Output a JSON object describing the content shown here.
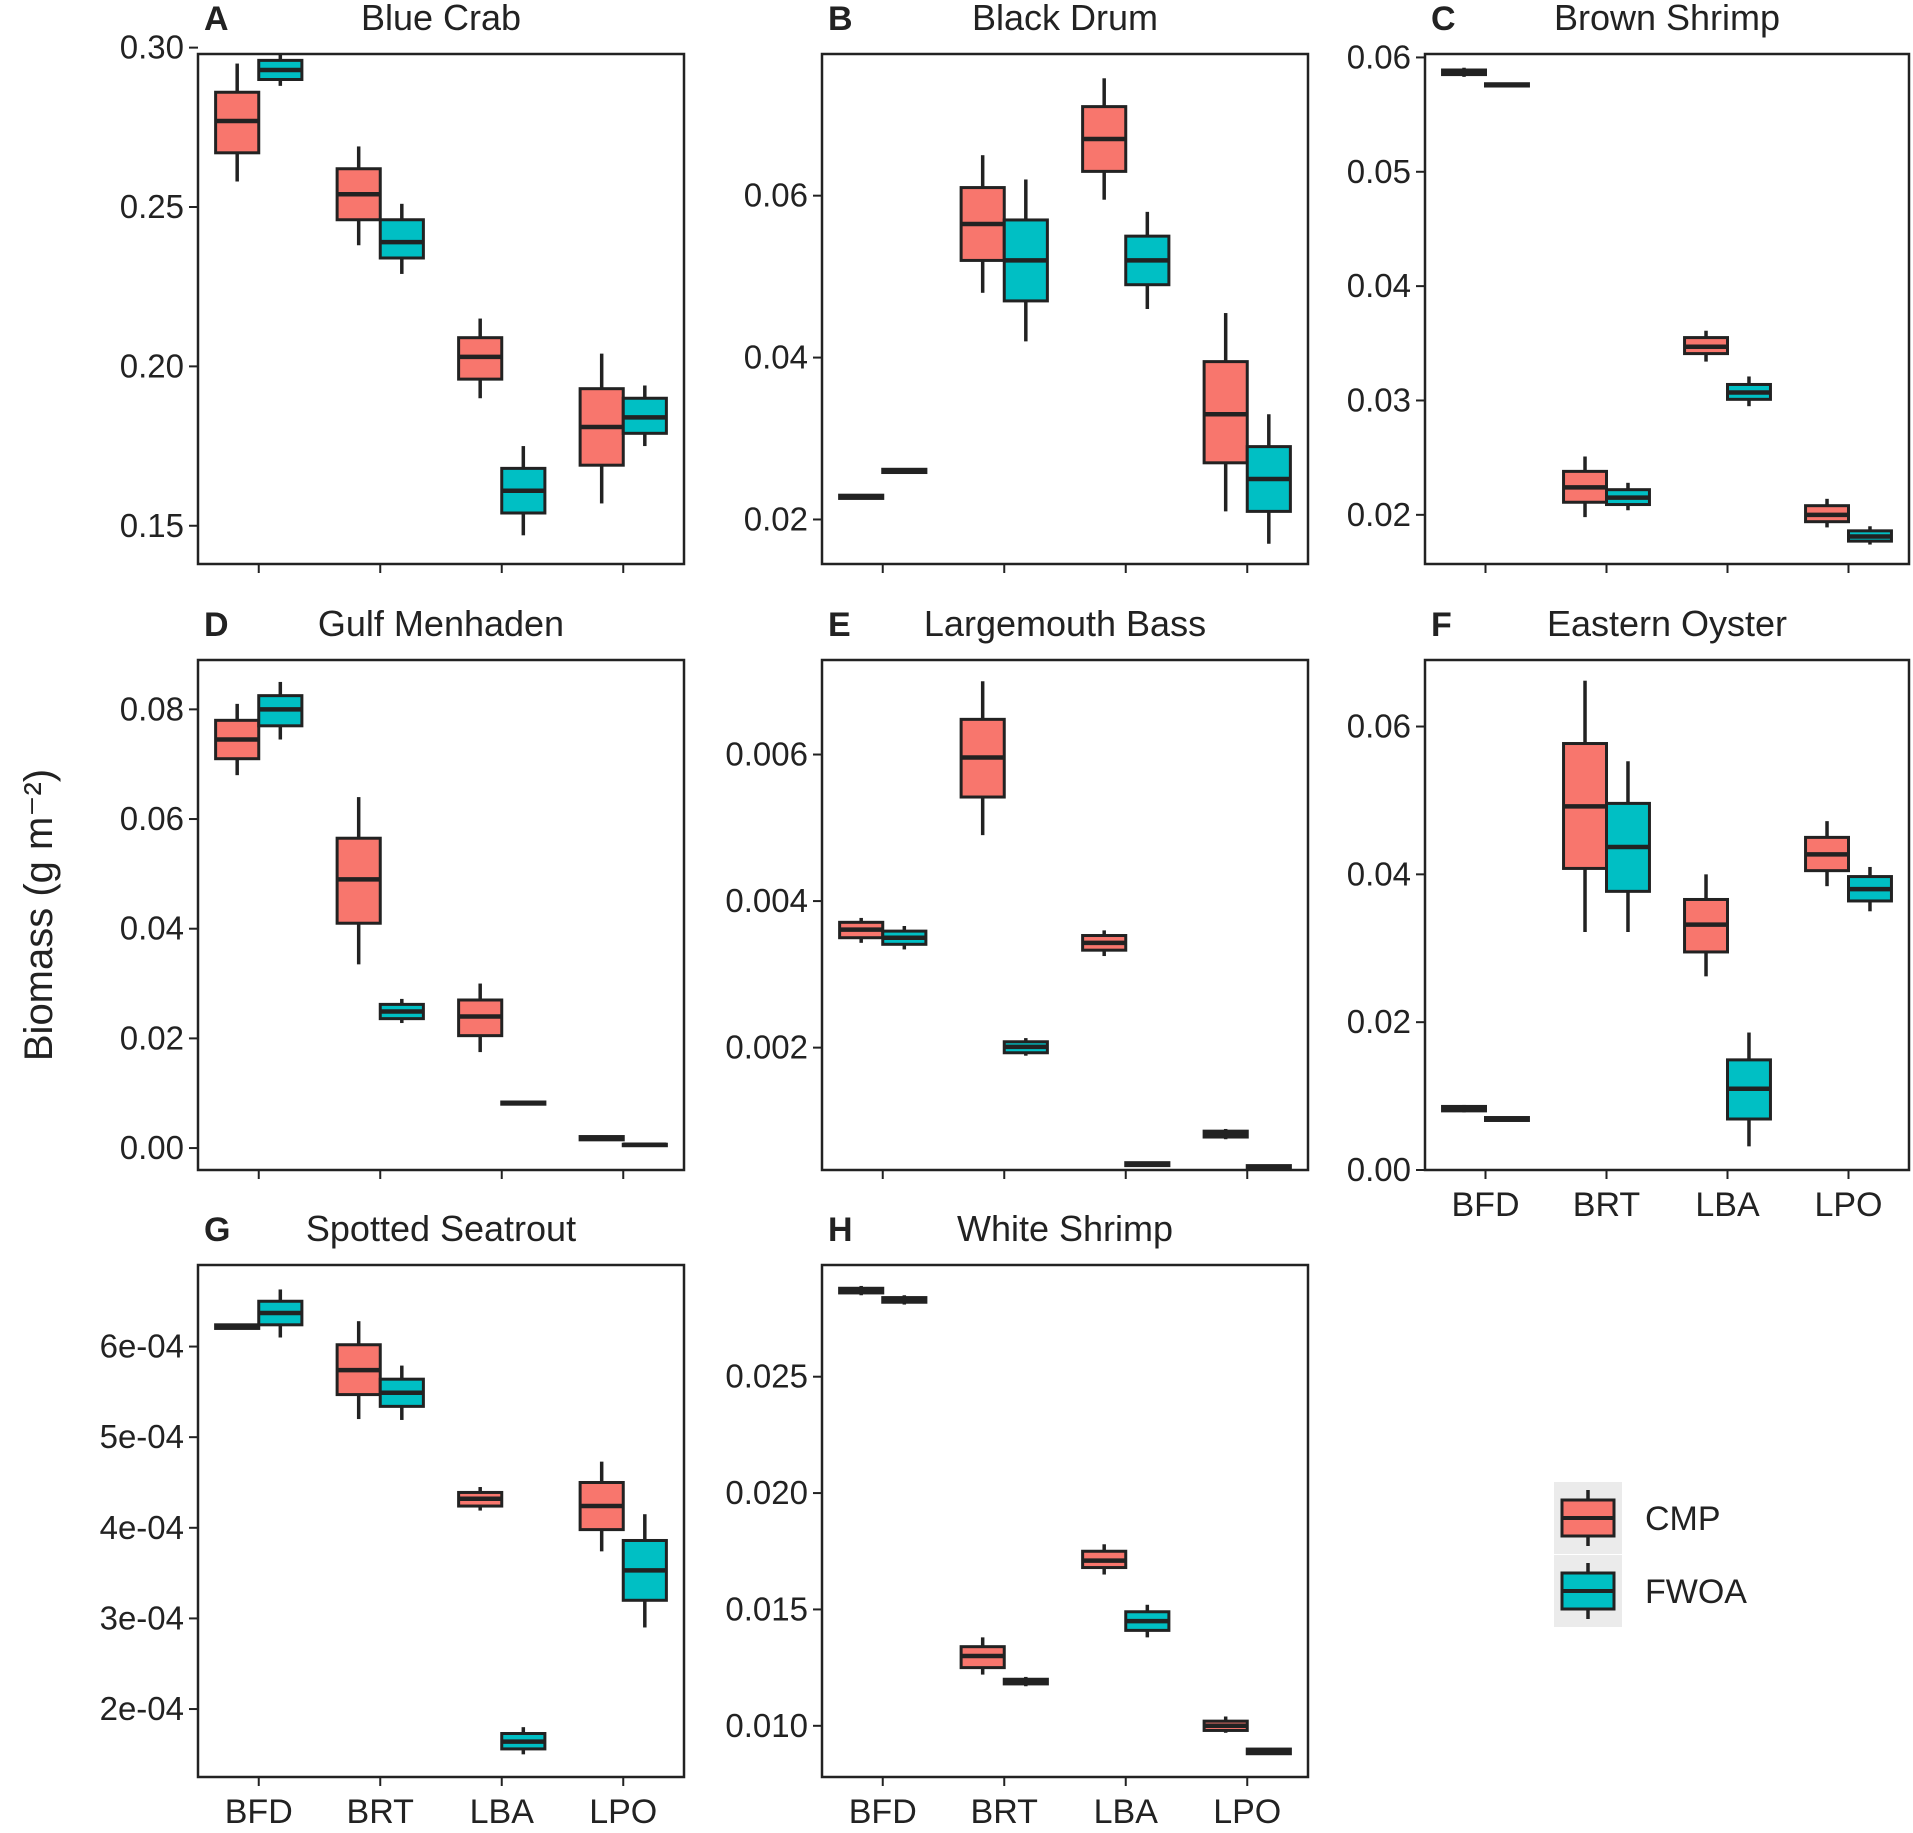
{
  "colors": {
    "CMP": "#F8766D",
    "FWOA": "#00BFC4",
    "outline": "#222222",
    "frame": "#222222"
  },
  "y_axis_title": "Biomass (g m⁻²)",
  "legend": [
    {
      "name": "CMP",
      "color": "#F8766D"
    },
    {
      "name": "FWOA",
      "color": "#00BFC4"
    }
  ],
  "chart_data": [
    {
      "panel": "A",
      "title": "Blue Crab",
      "type": "boxplot",
      "categories": [
        "BFD",
        "BRT",
        "LBA",
        "LPO"
      ],
      "ylim": [
        0.138,
        0.298
      ],
      "yticks": [
        0.15,
        0.2,
        0.25,
        0.3
      ],
      "yticklabels": [
        "0.15",
        "0.20",
        "0.25",
        "0.30"
      ],
      "series": [
        {
          "name": "CMP",
          "boxes": [
            {
              "min": 0.258,
              "q1": 0.267,
              "median": 0.277,
              "q3": 0.286,
              "max": 0.295
            },
            {
              "min": 0.238,
              "q1": 0.246,
              "median": 0.254,
              "q3": 0.262,
              "max": 0.269
            },
            {
              "min": 0.19,
              "q1": 0.196,
              "median": 0.203,
              "q3": 0.209,
              "max": 0.215
            },
            {
              "min": 0.157,
              "q1": 0.169,
              "median": 0.181,
              "q3": 0.193,
              "max": 0.204
            }
          ]
        },
        {
          "name": "FWOA",
          "boxes": [
            {
              "min": 0.288,
              "q1": 0.29,
              "median": 0.293,
              "q3": 0.296,
              "max": 0.298
            },
            {
              "min": 0.229,
              "q1": 0.234,
              "median": 0.239,
              "q3": 0.246,
              "max": 0.251
            },
            {
              "min": 0.147,
              "q1": 0.154,
              "median": 0.161,
              "q3": 0.168,
              "max": 0.175
            },
            {
              "min": 0.175,
              "q1": 0.179,
              "median": 0.184,
              "q3": 0.19,
              "max": 0.194
            }
          ]
        }
      ],
      "show_x_labels": false
    },
    {
      "panel": "B",
      "title": "Black Drum",
      "type": "boxplot",
      "categories": [
        "BFD",
        "BRT",
        "LBA",
        "LPO"
      ],
      "ylim": [
        0.0145,
        0.0775
      ],
      "yticks": [
        0.02,
        0.04,
        0.06
      ],
      "yticklabels": [
        "0.02",
        "0.04",
        "0.06"
      ],
      "series": [
        {
          "name": "CMP",
          "boxes": [
            {
              "min": 0.0225,
              "q1": 0.0226,
              "median": 0.0228,
              "q3": 0.023,
              "max": 0.0231
            },
            {
              "min": 0.048,
              "q1": 0.052,
              "median": 0.0565,
              "q3": 0.061,
              "max": 0.065
            },
            {
              "min": 0.0595,
              "q1": 0.063,
              "median": 0.067,
              "q3": 0.071,
              "max": 0.0745
            },
            {
              "min": 0.021,
              "q1": 0.027,
              "median": 0.033,
              "q3": 0.0395,
              "max": 0.0455
            }
          ]
        },
        {
          "name": "FWOA",
          "boxes": [
            {
              "min": 0.0257,
              "q1": 0.0258,
              "median": 0.026,
              "q3": 0.0262,
              "max": 0.0263
            },
            {
              "min": 0.042,
              "q1": 0.047,
              "median": 0.052,
              "q3": 0.057,
              "max": 0.062
            },
            {
              "min": 0.046,
              "q1": 0.049,
              "median": 0.052,
              "q3": 0.055,
              "max": 0.058
            },
            {
              "min": 0.017,
              "q1": 0.021,
              "median": 0.025,
              "q3": 0.029,
              "max": 0.033
            }
          ]
        }
      ],
      "show_x_labels": false
    },
    {
      "panel": "C",
      "title": "Brown Shrimp",
      "type": "boxplot",
      "categories": [
        "BFD",
        "BRT",
        "LBA",
        "LPO"
      ],
      "ylim": [
        0.0157,
        0.0603
      ],
      "yticks": [
        0.02,
        0.03,
        0.04,
        0.05,
        0.06
      ],
      "yticklabels": [
        "0.02",
        "0.03",
        "0.04",
        "0.05",
        "0.06"
      ],
      "series": [
        {
          "name": "CMP",
          "boxes": [
            {
              "min": 0.0583,
              "q1": 0.0585,
              "median": 0.0587,
              "q3": 0.0589,
              "max": 0.0591
            },
            {
              "min": 0.0198,
              "q1": 0.0211,
              "median": 0.0224,
              "q3": 0.0238,
              "max": 0.0251
            },
            {
              "min": 0.0334,
              "q1": 0.0341,
              "median": 0.0347,
              "q3": 0.0355,
              "max": 0.0361
            },
            {
              "min": 0.0189,
              "q1": 0.0194,
              "median": 0.02,
              "q3": 0.0208,
              "max": 0.0214
            }
          ]
        },
        {
          "name": "FWOA",
          "boxes": [
            {
              "min": 0.0574,
              "q1": 0.0575,
              "median": 0.0576,
              "q3": 0.0577,
              "max": 0.0578
            },
            {
              "min": 0.0204,
              "q1": 0.0209,
              "median": 0.0215,
              "q3": 0.0222,
              "max": 0.0228
            },
            {
              "min": 0.0295,
              "q1": 0.0301,
              "median": 0.0307,
              "q3": 0.0314,
              "max": 0.0321
            },
            {
              "min": 0.0174,
              "q1": 0.0177,
              "median": 0.0181,
              "q3": 0.0186,
              "max": 0.019
            }
          ]
        }
      ],
      "show_x_labels": false
    },
    {
      "panel": "D",
      "title": "Gulf Menhaden",
      "type": "boxplot",
      "categories": [
        "BFD",
        "BRT",
        "LBA",
        "LPO"
      ],
      "ylim": [
        -0.004,
        0.089
      ],
      "yticks": [
        0.0,
        0.02,
        0.04,
        0.06,
        0.08
      ],
      "yticklabels": [
        "0.00",
        "0.02",
        "0.04",
        "0.06",
        "0.08"
      ],
      "series": [
        {
          "name": "CMP",
          "boxes": [
            {
              "min": 0.068,
              "q1": 0.071,
              "median": 0.0745,
              "q3": 0.078,
              "max": 0.081
            },
            {
              "min": 0.0335,
              "q1": 0.041,
              "median": 0.049,
              "q3": 0.0565,
              "max": 0.064
            },
            {
              "min": 0.0175,
              "q1": 0.0205,
              "median": 0.024,
              "q3": 0.027,
              "max": 0.03
            },
            {
              "min": 0.0013,
              "q1": 0.0015,
              "median": 0.0018,
              "q3": 0.0021,
              "max": 0.0023
            }
          ]
        },
        {
          "name": "FWOA",
          "boxes": [
            {
              "min": 0.0745,
              "q1": 0.077,
              "median": 0.08,
              "q3": 0.0825,
              "max": 0.085
            },
            {
              "min": 0.0228,
              "q1": 0.0236,
              "median": 0.0249,
              "q3": 0.0262,
              "max": 0.0272
            },
            {
              "min": 0.0079,
              "q1": 0.008,
              "median": 0.0082,
              "q3": 0.0084,
              "max": 0.0085
            },
            {
              "min": 0.0004,
              "q1": 0.0005,
              "median": 0.0006,
              "q3": 0.0007,
              "max": 0.0008
            }
          ]
        }
      ],
      "show_x_labels": false
    },
    {
      "panel": "E",
      "title": "Largemouth Bass",
      "type": "boxplot",
      "categories": [
        "BFD",
        "BRT",
        "LBA",
        "LPO"
      ],
      "ylim": [
        0.00033,
        0.00729
      ],
      "yticks": [
        0.002,
        0.004,
        0.006
      ],
      "yticklabels": [
        "0.002",
        "0.004",
        "0.006"
      ],
      "series": [
        {
          "name": "CMP",
          "boxes": [
            {
              "min": 0.00343,
              "q1": 0.0035,
              "median": 0.00361,
              "q3": 0.00371,
              "max": 0.00377
            },
            {
              "min": 0.0049,
              "q1": 0.00542,
              "median": 0.00596,
              "q3": 0.00648,
              "max": 0.007
            },
            {
              "min": 0.00325,
              "q1": 0.00333,
              "median": 0.00343,
              "q3": 0.00353,
              "max": 0.0036
            },
            {
              "min": 0.00075,
              "q1": 0.00078,
              "median": 0.00082,
              "q3": 0.00086,
              "max": 0.00089
            }
          ]
        },
        {
          "name": "FWOA",
          "boxes": [
            {
              "min": 0.00334,
              "q1": 0.00341,
              "median": 0.0035,
              "q3": 0.00359,
              "max": 0.00366
            },
            {
              "min": 0.00189,
              "q1": 0.00193,
              "median": 0.00201,
              "q3": 0.00208,
              "max": 0.00213
            },
            {
              "min": 0.00038,
              "q1": 0.00039,
              "median": 0.00041,
              "q3": 0.00043,
              "max": 0.00044
            },
            {
              "min": 0.00034,
              "q1": 0.00035,
              "median": 0.00037,
              "q3": 0.00039,
              "max": 0.0004
            }
          ]
        }
      ],
      "show_x_labels": false
    },
    {
      "panel": "F",
      "title": "Eastern Oyster",
      "type": "boxplot",
      "categories": [
        "BFD",
        "BRT",
        "LBA",
        "LPO"
      ],
      "ylim": [
        0.0,
        0.069
      ],
      "yticks": [
        0.0,
        0.02,
        0.04,
        0.06
      ],
      "yticklabels": [
        "0.00",
        "0.02",
        "0.04",
        "0.06"
      ],
      "series": [
        {
          "name": "CMP",
          "boxes": [
            {
              "min": 0.0078,
              "q1": 0.008,
              "median": 0.0083,
              "q3": 0.0086,
              "max": 0.0088
            },
            {
              "min": 0.0322,
              "q1": 0.0408,
              "median": 0.0492,
              "q3": 0.0577,
              "max": 0.0662
            },
            {
              "min": 0.0262,
              "q1": 0.0295,
              "median": 0.0332,
              "q3": 0.0366,
              "max": 0.04
            },
            {
              "min": 0.0384,
              "q1": 0.0405,
              "median": 0.0427,
              "q3": 0.045,
              "max": 0.0472
            }
          ]
        },
        {
          "name": "FWOA",
          "boxes": [
            {
              "min": 0.0066,
              "q1": 0.0067,
              "median": 0.0069,
              "q3": 0.0071,
              "max": 0.0072
            },
            {
              "min": 0.0322,
              "q1": 0.0377,
              "median": 0.0437,
              "q3": 0.0496,
              "max": 0.0553
            },
            {
              "min": 0.0032,
              "q1": 0.0069,
              "median": 0.011,
              "q3": 0.0149,
              "max": 0.0186
            },
            {
              "min": 0.035,
              "q1": 0.0364,
              "median": 0.038,
              "q3": 0.0397,
              "max": 0.041
            }
          ]
        }
      ],
      "show_x_labels": true
    },
    {
      "panel": "G",
      "title": "Spotted Seatrout",
      "type": "boxplot",
      "categories": [
        "BFD",
        "BRT",
        "LBA",
        "LPO"
      ],
      "ylim": [
        0.000125,
        0.00069
      ],
      "yticks": [
        0.0002,
        0.0003,
        0.0004,
        0.0005,
        0.0006
      ],
      "yticklabels": [
        "2e-04",
        "3e-04",
        "4e-04",
        "5e-04",
        "6e-04"
      ],
      "series": [
        {
          "name": "CMP",
          "boxes": [
            {
              "min": 0.000619,
              "q1": 0.00062,
              "median": 0.000622,
              "q3": 0.000624,
              "max": 0.000625
            },
            {
              "min": 0.00052,
              "q1": 0.000547,
              "median": 0.000574,
              "q3": 0.000602,
              "max": 0.000628
            },
            {
              "min": 0.000419,
              "q1": 0.000424,
              "median": 0.000432,
              "q3": 0.000439,
              "max": 0.000445
            },
            {
              "min": 0.000374,
              "q1": 0.000398,
              "median": 0.000424,
              "q3": 0.00045,
              "max": 0.000473
            }
          ]
        },
        {
          "name": "FWOA",
          "boxes": [
            {
              "min": 0.00061,
              "q1": 0.000624,
              "median": 0.000637,
              "q3": 0.00065,
              "max": 0.000663
            },
            {
              "min": 0.000519,
              "q1": 0.000534,
              "median": 0.000549,
              "q3": 0.000564,
              "max": 0.000579
            },
            {
              "min": 0.00015,
              "q1": 0.000156,
              "median": 0.000164,
              "q3": 0.000173,
              "max": 0.00018
            },
            {
              "min": 0.00029,
              "q1": 0.00032,
              "median": 0.000353,
              "q3": 0.000386,
              "max": 0.000415
            }
          ]
        }
      ],
      "show_x_labels": true
    },
    {
      "panel": "H",
      "title": "White Shrimp",
      "type": "boxplot",
      "categories": [
        "BFD",
        "BRT",
        "LBA",
        "LPO"
      ],
      "ylim": [
        0.0078,
        0.0298
      ],
      "yticks": [
        0.01,
        0.015,
        0.02,
        0.025
      ],
      "yticklabels": [
        "0.010",
        "0.015",
        "0.020",
        "0.025"
      ],
      "series": [
        {
          "name": "CMP",
          "boxes": [
            {
              "min": 0.0285,
              "q1": 0.0286,
              "median": 0.0287,
              "q3": 0.0288,
              "max": 0.0289
            },
            {
              "min": 0.0122,
              "q1": 0.0125,
              "median": 0.013,
              "q3": 0.0134,
              "max": 0.0138
            },
            {
              "min": 0.0165,
              "q1": 0.0168,
              "median": 0.0171,
              "q3": 0.0175,
              "max": 0.0178
            },
            {
              "min": 0.0097,
              "q1": 0.0098,
              "median": 0.01,
              "q3": 0.0102,
              "max": 0.0104
            }
          ]
        },
        {
          "name": "FWOA",
          "boxes": [
            {
              "min": 0.0281,
              "q1": 0.0282,
              "median": 0.0283,
              "q3": 0.0284,
              "max": 0.0285
            },
            {
              "min": 0.0117,
              "q1": 0.0118,
              "median": 0.0119,
              "q3": 0.012,
              "max": 0.0121
            },
            {
              "min": 0.0138,
              "q1": 0.0141,
              "median": 0.0145,
              "q3": 0.0149,
              "max": 0.0152
            },
            {
              "min": 0.0088,
              "q1": 0.0088,
              "median": 0.0089,
              "q3": 0.009,
              "max": 0.009
            }
          ]
        }
      ],
      "show_x_labels": true
    }
  ]
}
